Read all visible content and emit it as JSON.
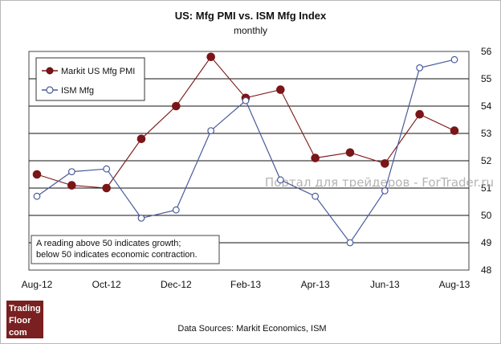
{
  "chart_data": {
    "type": "line",
    "title": "US: Mfg PMI vs. ISM Mfg Index",
    "subtitle": "monthly",
    "categories": [
      "Aug-12",
      "Sep-12",
      "Oct-12",
      "Nov-12",
      "Dec-12",
      "Jan-13",
      "Feb-13",
      "Mar-13",
      "Apr-13",
      "May-13",
      "Jun-13",
      "Jul-13",
      "Aug-13"
    ],
    "x_tick_labels": [
      "Aug-12",
      "Oct-12",
      "Dec-12",
      "Feb-13",
      "Apr-13",
      "Jun-13",
      "Aug-13"
    ],
    "y_tick_labels": [
      "48",
      "49",
      "50",
      "51",
      "52",
      "53",
      "54",
      "55",
      "56"
    ],
    "ylim": [
      48,
      56
    ],
    "grid": "horizontal",
    "legend_placement": "top-left",
    "series": [
      {
        "name": "Markit US Mfg PMI",
        "values": [
          51.5,
          51.1,
          51.0,
          52.8,
          54.0,
          55.8,
          54.3,
          54.6,
          52.1,
          52.3,
          51.9,
          53.7,
          53.1
        ],
        "color": "#7a1518",
        "marker_fill": "#7a1518"
      },
      {
        "name": "ISM Mfg",
        "values": [
          50.7,
          51.6,
          51.7,
          49.9,
          50.2,
          53.1,
          54.2,
          51.3,
          50.7,
          49.0,
          50.9,
          55.4,
          55.7
        ],
        "color": "#4a5a9a",
        "marker_fill": "#ffffff"
      }
    ]
  },
  "annotation": {
    "line1": "A reading above 50 indicates growth;",
    "line2": "below 50 indicates economic contraction."
  },
  "watermark": "Портал для трейдеров - ForTrader.ru",
  "source": "Data Sources: Markit Economics, ISM",
  "logo": {
    "line1": "Trading",
    "line2": "Floor",
    "line3": "com",
    "color": "#7a2020"
  }
}
